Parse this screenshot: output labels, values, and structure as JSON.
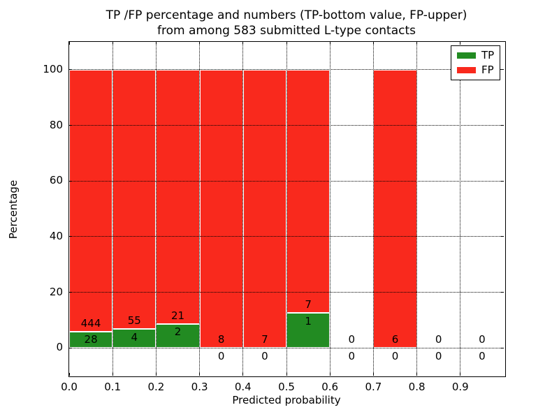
{
  "title": {
    "line1": "TP /FP percentage and numbers (TP-bottom value, FP-upper)",
    "line2": "from among 583 submitted L-type contacts"
  },
  "chart_data": {
    "type": "bar",
    "stacked": true,
    "title": "TP /FP percentage and numbers (TP-bottom value, FP-upper) from among 583 submitted L-type contacts",
    "xlabel": "Predicted probability",
    "ylabel": "Percentage",
    "xlim": [
      0.0,
      1.0
    ],
    "ylim": [
      -10,
      110
    ],
    "bin_width": 0.1,
    "total_contacts": 583,
    "grid": "dotted, on x ticks and y ticks, drawn over bars",
    "x_tick_values": [
      0.0,
      0.1,
      0.2,
      0.3,
      0.4,
      0.5,
      0.6,
      0.7,
      0.8,
      0.9
    ],
    "x_tick_labels": [
      "0.0",
      "0.1",
      "0.2",
      "0.3",
      "0.4",
      "0.5",
      "0.6",
      "0.7",
      "0.8",
      "0.9"
    ],
    "y_tick_values": [
      0,
      20,
      40,
      60,
      80,
      100
    ],
    "y_tick_labels": [
      "0",
      "20",
      "40",
      "60",
      "80",
      "100"
    ],
    "categories": [
      "0.0-0.1",
      "0.1-0.2",
      "0.2-0.3",
      "0.3-0.4",
      "0.4-0.5",
      "0.5-0.6",
      "0.6-0.7",
      "0.7-0.8",
      "0.8-0.9",
      "0.9-1.0"
    ],
    "series": [
      {
        "name": "TP",
        "color": "#228b22",
        "values": [
          28,
          4,
          2,
          0,
          0,
          1,
          0,
          0,
          0,
          0
        ]
      },
      {
        "name": "FP",
        "color": "#f9291d",
        "values": [
          444,
          55,
          21,
          8,
          7,
          7,
          0,
          6,
          0,
          0
        ]
      }
    ],
    "bars_percent_note": "each non-empty bin is stacked to 100%; TP% = TP/(TP+FP)*100",
    "tp_percent_per_bin": [
      5.93,
      6.78,
      8.7,
      0,
      0,
      12.5,
      null,
      0,
      null,
      null
    ],
    "bar_label_offset_pct": 3,
    "legend": {
      "position": "upper right",
      "entries": [
        {
          "label": "TP",
          "color": "#228b22"
        },
        {
          "label": "FP",
          "color": "#f9291d"
        }
      ]
    }
  }
}
